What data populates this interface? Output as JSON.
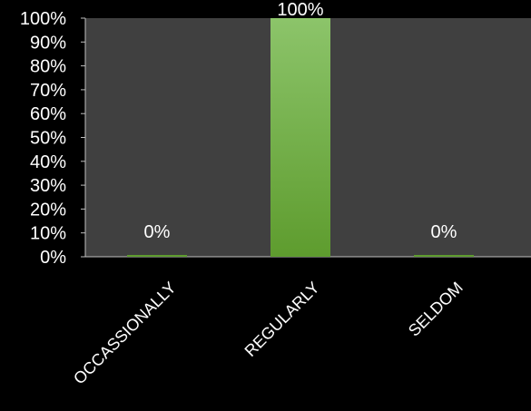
{
  "chart_data": {
    "type": "bar",
    "categories": [
      "OCCASSIONALLY",
      "REGULARLY",
      "SELDOM"
    ],
    "values": [
      0,
      100,
      0
    ],
    "data_labels": [
      "0%",
      "100%",
      "0%"
    ],
    "ylim": [
      0,
      100
    ],
    "yticks": [
      0,
      10,
      20,
      30,
      40,
      50,
      60,
      70,
      80,
      90,
      100
    ],
    "ytick_labels": [
      "0%",
      "10%",
      "20%",
      "30%",
      "40%",
      "50%",
      "60%",
      "70%",
      "80%",
      "90%",
      "100%"
    ],
    "title": "",
    "xlabel": "",
    "ylabel": "",
    "grid": false,
    "legend": "none"
  },
  "colors": {
    "background": "#000000",
    "plot_area": "#404040",
    "bar_top": "#8cc46a",
    "bar_bottom": "#5e9c2e",
    "text": "#ffffff",
    "axis": "#bfbfbf"
  }
}
